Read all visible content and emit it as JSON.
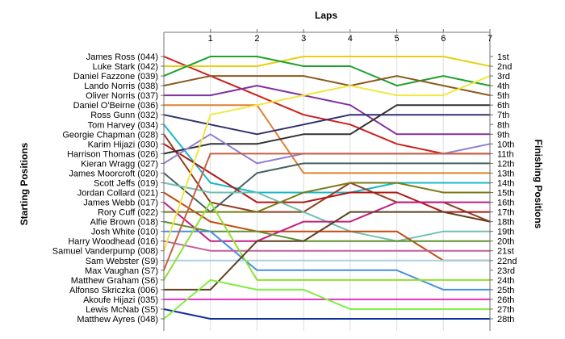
{
  "chart_data": {
    "type": "line",
    "title": "",
    "xlabel": "Laps",
    "ylabel_left": "Starting Positions",
    "ylabel_right": "Finishing Positions",
    "x": [
      0,
      1,
      2,
      3,
      4,
      5,
      6,
      7
    ],
    "x_tick_labels": [
      "1",
      "2",
      "3",
      "4",
      "5",
      "6",
      "7"
    ],
    "ylim": [
      1,
      28
    ],
    "grid": true,
    "starting_labels": [
      "James Ross (044)",
      "Luke Stark (042)",
      "Daniel Fazzone (039)",
      "Lando Norris (038)",
      "Oliver Norris (037)",
      "Daniel O'Beirne (036)",
      "Ross Gunn (032)",
      "Tom Harvey (034)",
      "Georgie Chapman (028)",
      "Karim Hijazi (030)",
      "Harrison Thomas (026)",
      "Kieran Wragg (027)",
      "James Moorcroft (020)",
      "Scott Jeffs (019)",
      "Jordan Collard (021)",
      "James Webb (017)",
      "Rory Cuff (022)",
      "Alfie Brown (018)",
      "Josh White (010)",
      "Harry Woodhead (016)",
      "Samuel Vanderpump (008)",
      "Sam Webster (S9)",
      "Max Vaughan (S7)",
      "Matthew Graham (S6)",
      "Alfonso Skriczka (006)",
      "Akoufe Hijazi (035)",
      "Lewis McNab (S5)",
      "Matthew Ayres (048)"
    ],
    "finishing_labels": [
      "1st",
      "2nd",
      "3rd",
      "4th",
      "5th",
      "6th",
      "7th",
      "8th",
      "9th",
      "10th",
      "11th",
      "12th",
      "13th",
      "14th",
      "15th",
      "16th",
      "17th",
      "18th",
      "19th",
      "20th",
      "21st",
      "22nd",
      "23rd",
      "24th",
      "25th",
      "26th",
      "27th",
      "28th"
    ],
    "series": [
      {
        "color": "#cc2020",
        "values": [
          1,
          3,
          5,
          7,
          8,
          10,
          11,
          11
        ]
      },
      {
        "color": "#e8d010",
        "values": [
          2,
          2,
          2,
          1,
          1,
          1,
          1,
          2
        ]
      },
      {
        "color": "#20a030",
        "values": [
          3,
          1,
          1,
          2,
          2,
          4,
          3,
          4
        ]
      },
      {
        "color": "#8c5a1e",
        "values": [
          4,
          3,
          3,
          3,
          4,
          3,
          4,
          5
        ]
      },
      {
        "color": "#8030a0",
        "values": [
          5,
          5,
          4,
          5,
          6,
          9,
          9,
          9
        ]
      },
      {
        "color": "#e08030",
        "values": [
          6,
          6,
          6,
          13,
          13,
          13,
          13,
          13
        ]
      },
      {
        "color": "#303070",
        "values": [
          7,
          8,
          9,
          8,
          7,
          7,
          7,
          7
        ]
      },
      {
        "color": "#18b8c8",
        "values": [
          8,
          14,
          15,
          15,
          15,
          14,
          14,
          14
        ]
      },
      {
        "color": "#904020",
        "values": [
          9,
          16,
          17,
          17,
          14,
          16,
          16,
          18
        ]
      },
      {
        "color": "#b01818",
        "values": [
          10,
          13,
          16,
          16,
          15,
          15,
          17,
          17
        ]
      },
      {
        "color": "#303030",
        "values": [
          11,
          10,
          10,
          9,
          9,
          6,
          6,
          6
        ]
      },
      {
        "color": "#9080d0",
        "values": [
          12,
          9,
          12,
          11,
          11,
          11,
          11,
          10
        ]
      },
      {
        "color": "#486060",
        "values": [
          13,
          17,
          13,
          12,
          12,
          12,
          12,
          12
        ]
      },
      {
        "color": "#70c0b0",
        "values": [
          14,
          15,
          15,
          17,
          19,
          20,
          19,
          19
        ]
      },
      {
        "color": "#c04a10",
        "values": [
          15,
          18,
          19,
          19,
          19,
          19,
          22,
          22
        ]
      },
      {
        "color": "#c02080",
        "values": [
          16,
          20,
          20,
          18,
          18,
          16,
          16,
          16
        ]
      },
      {
        "color": "#7a7a18",
        "values": [
          17,
          17,
          17,
          15,
          14,
          14,
          15,
          15
        ]
      },
      {
        "color": "#609030",
        "values": [
          18,
          19,
          19,
          20,
          20,
          20,
          20,
          20
        ]
      },
      {
        "color": "#4890e0",
        "values": [
          19,
          19,
          23,
          23,
          23,
          23,
          25,
          25
        ]
      },
      {
        "color": "#c060a0",
        "values": [
          20,
          21,
          21,
          21,
          21,
          21,
          21,
          21
        ]
      },
      {
        "color": "#f0e840",
        "values": [
          21,
          7,
          6,
          5,
          4,
          5,
          5,
          3
        ]
      },
      {
        "color": "#a8d0e8",
        "values": [
          22,
          22,
          22,
          22,
          22,
          22,
          22,
          22
        ]
      },
      {
        "color": "#c86040",
        "values": [
          23,
          11,
          11,
          11,
          11,
          11,
          11,
          11
        ]
      },
      {
        "color": "#90e030",
        "values": [
          24,
          16,
          24,
          24,
          24,
          24,
          24,
          24
        ]
      },
      {
        "color": "#604020",
        "values": [
          25,
          25,
          20,
          20,
          17,
          17,
          17,
          18
        ]
      },
      {
        "color": "#e030c0",
        "values": [
          26,
          26,
          26,
          26,
          26,
          26,
          26,
          26
        ]
      },
      {
        "color": "#1030a0",
        "values": [
          27,
          28,
          28,
          28,
          28,
          28,
          28,
          28
        ]
      },
      {
        "color": "#80f040",
        "values": [
          28,
          24,
          25,
          25,
          27,
          27,
          27,
          27
        ]
      }
    ]
  }
}
